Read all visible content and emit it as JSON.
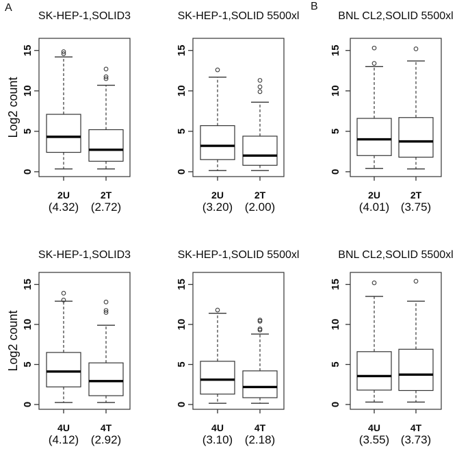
{
  "figure": {
    "panels": [
      {
        "id": "panel-a",
        "label": "A"
      },
      {
        "id": "panel-b",
        "label": "B"
      }
    ],
    "y_axis_label": "Log2 count",
    "line_color": "#333333",
    "median_color": "#000000"
  },
  "chart_data": [
    {
      "type": "boxplot",
      "panel": "A",
      "position": "top-left",
      "title": "SK-HEP-1,SOLID3",
      "ylabel": "Log2 count",
      "yticks": [
        0,
        5,
        10,
        15
      ],
      "ylim": [
        -0.6,
        16.5
      ],
      "groups": [
        {
          "label": "2U",
          "stat_label": "(4.32)",
          "whisker_low": 0.35,
          "q1": 2.4,
          "median": 4.32,
          "q3": 7.1,
          "whisker_high": 14.2,
          "outliers": [
            14.6,
            14.85
          ]
        },
        {
          "label": "2T",
          "stat_label": "(2.72)",
          "whisker_low": 0.35,
          "q1": 1.3,
          "median": 2.72,
          "q3": 5.2,
          "whisker_high": 10.7,
          "outliers": [
            11.5,
            11.75,
            12.7
          ]
        }
      ]
    },
    {
      "type": "boxplot",
      "panel": "A",
      "position": "top-middle",
      "title": "SK-HEP-1,SOLID 5500xl",
      "ylabel": null,
      "yticks": [
        0,
        5,
        10,
        15
      ],
      "ylim": [
        -0.6,
        16.5
      ],
      "groups": [
        {
          "label": "2U",
          "stat_label": "(3.20)",
          "whisker_low": 0.15,
          "q1": 1.5,
          "median": 3.2,
          "q3": 5.7,
          "whisker_high": 11.7,
          "outliers": [
            12.6
          ]
        },
        {
          "label": "2T",
          "stat_label": "(2.00)",
          "whisker_low": 0.15,
          "q1": 0.8,
          "median": 2.0,
          "q3": 4.4,
          "whisker_high": 8.6,
          "outliers": [
            9.9,
            10.5,
            11.3
          ]
        }
      ]
    },
    {
      "type": "boxplot",
      "panel": "B",
      "position": "top-right",
      "title": "BNL CL2,SOLID 5500xl",
      "ylabel": null,
      "yticks": [
        0,
        5,
        10,
        15
      ],
      "ylim": [
        -0.6,
        16.5
      ],
      "groups": [
        {
          "label": "2U",
          "stat_label": "(4.01)",
          "whisker_low": 0.4,
          "q1": 2.0,
          "median": 4.01,
          "q3": 6.6,
          "whisker_high": 13.0,
          "outliers": [
            13.4,
            15.3
          ]
        },
        {
          "label": "2T",
          "stat_label": "(3.75)",
          "whisker_low": 0.35,
          "q1": 1.8,
          "median": 3.75,
          "q3": 6.7,
          "whisker_high": 13.7,
          "outliers": [
            15.2
          ]
        }
      ]
    },
    {
      "type": "boxplot",
      "panel": "A",
      "position": "bottom-left",
      "title": "SK-HEP-1,SOLID3",
      "ylabel": "Log2 count",
      "yticks": [
        0,
        5,
        10,
        15
      ],
      "ylim": [
        -0.6,
        16.5
      ],
      "groups": [
        {
          "label": "4U",
          "stat_label": "(4.12)",
          "whisker_low": 0.25,
          "q1": 2.2,
          "median": 4.12,
          "q3": 6.5,
          "whisker_high": 12.9,
          "outliers": [
            13.05,
            13.9
          ]
        },
        {
          "label": "4T",
          "stat_label": "(2.92)",
          "whisker_low": 0.25,
          "q1": 1.1,
          "median": 2.92,
          "q3": 5.2,
          "whisker_high": 9.9,
          "outliers": [
            11.5,
            11.75,
            12.8
          ]
        }
      ]
    },
    {
      "type": "boxplot",
      "panel": "A",
      "position": "bottom-middle",
      "title": "SK-HEP-1,SOLID 5500xl",
      "ylabel": null,
      "yticks": [
        0,
        5,
        10,
        15
      ],
      "ylim": [
        -0.6,
        16.5
      ],
      "groups": [
        {
          "label": "4U",
          "stat_label": "(3.10)",
          "whisker_low": 0.15,
          "q1": 1.3,
          "median": 3.1,
          "q3": 5.4,
          "whisker_high": 11.4,
          "outliers": [
            11.8
          ]
        },
        {
          "label": "4T",
          "stat_label": "(2.18)",
          "whisker_low": 0.15,
          "q1": 0.85,
          "median": 2.18,
          "q3": 4.2,
          "whisker_high": 8.8,
          "outliers": [
            9.3,
            9.45,
            10.4,
            10.55
          ]
        }
      ]
    },
    {
      "type": "boxplot",
      "panel": "B",
      "position": "bottom-right",
      "title": "BNL CL2,SOLID 5500xl",
      "ylabel": null,
      "yticks": [
        0,
        5,
        10,
        15
      ],
      "ylim": [
        -0.6,
        16.5
      ],
      "groups": [
        {
          "label": "4U",
          "stat_label": "(3.55)",
          "whisker_low": 0.3,
          "q1": 1.8,
          "median": 3.55,
          "q3": 6.6,
          "whisker_high": 13.5,
          "outliers": [
            15.2
          ]
        },
        {
          "label": "4T",
          "stat_label": "(3.73)",
          "whisker_low": 0.3,
          "q1": 1.75,
          "median": 3.73,
          "q3": 6.9,
          "whisker_high": 12.9,
          "outliers": [
            15.4
          ]
        }
      ]
    }
  ]
}
